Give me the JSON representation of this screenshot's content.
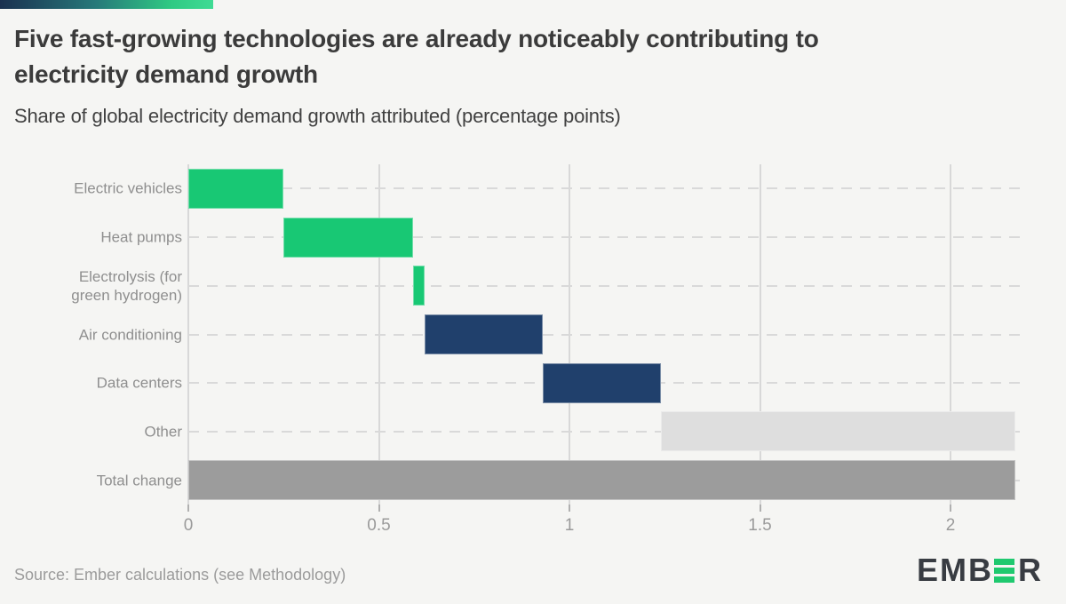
{
  "header": {
    "title_line1": "Five fast-growing technologies are already noticeably contributing to",
    "title_line2": "electricity demand growth",
    "subtitle": "Share of global electricity demand growth attributed (percentage points)"
  },
  "chart_data": {
    "type": "bar",
    "subtype": "horizontal_waterfall",
    "title": "Five fast-growing technologies are already noticeably contributing to electricity demand growth",
    "xlabel": "Share of global electricity demand growth attributed (percentage points)",
    "ylabel": "",
    "unit": "percentage points",
    "xlim": [
      0,
      2.2
    ],
    "xticks": [
      0,
      0.5,
      1,
      1.5,
      2
    ],
    "xtick_labels": [
      "0",
      "0.5",
      "1",
      "1.5",
      "2"
    ],
    "grid": {
      "vertical": "solid",
      "horizontal": "dashed"
    },
    "legend": "none",
    "categories": [
      "Electric vehicles",
      "Heat pumps",
      "Electrolysis (for green hydrogen)",
      "Air conditioning",
      "Data centers",
      "Other",
      "Total change"
    ],
    "bars": [
      {
        "label": "Electric vehicles",
        "start": 0,
        "end": 0.25,
        "value": 0.25,
        "color": "#18c874"
      },
      {
        "label": "Heat pumps",
        "start": 0.25,
        "end": 0.59,
        "value": 0.34,
        "color": "#18c874"
      },
      {
        "label": "Electrolysis (for green hydrogen)",
        "start": 0.59,
        "end": 0.62,
        "value": 0.03,
        "color": "#18c874"
      },
      {
        "label": "Air conditioning",
        "start": 0.62,
        "end": 0.93,
        "value": 0.31,
        "color": "#20406c"
      },
      {
        "label": "Data centers",
        "start": 0.93,
        "end": 1.24,
        "value": 0.31,
        "color": "#20406c"
      },
      {
        "label": "Other",
        "start": 1.24,
        "end": 2.17,
        "value": 0.93,
        "color": "#dedede"
      },
      {
        "label": "Total change",
        "start": 0,
        "end": 2.17,
        "value": 2.17,
        "color": "#9c9c9c"
      }
    ]
  },
  "footer": {
    "source": "Source: Ember calculations (see Methodology)"
  },
  "logo": {
    "prefix": "EMB",
    "suffix": "R",
    "green_bar_count": 3,
    "green": "#1fc96f",
    "text_color": "#383c42"
  },
  "colors": {
    "background": "#f5f5f3",
    "green": "#18c874",
    "navy": "#20406c",
    "other_gray": "#dedede",
    "total_gray": "#9c9c9c",
    "title_text": "#3b3b3b",
    "subtitle_text": "#414141",
    "category_text": "#8f8f8f",
    "axis_text": "#9a9a9a",
    "gridline": "#d8d8d8",
    "brand_gradient_start": "#1b3150",
    "brand_gradient_end": "#3fdb94"
  }
}
